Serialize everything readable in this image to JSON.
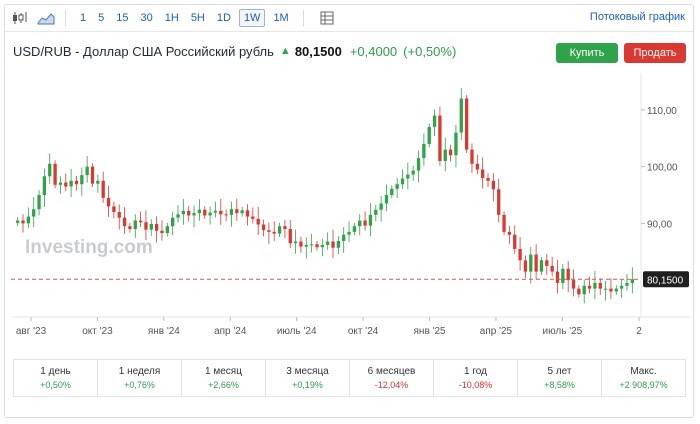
{
  "toolbar": {
    "ranges": [
      "1",
      "5",
      "15",
      "30",
      "1H",
      "5H",
      "1D",
      "1W",
      "1M"
    ],
    "active_range": "1W",
    "stream_link": "Потоковый график"
  },
  "header": {
    "title": "USD/RUB - Доллар США Российский рубль",
    "price": "80,1500",
    "change": "+0,4000",
    "change_pct": "(+0,50%)"
  },
  "buttons": {
    "buy": "Купить",
    "sell": "Продать"
  },
  "colors": {
    "up": "#2fa34a",
    "down": "#d83a32",
    "link": "#1b5fb8",
    "price_line": "#d9534f"
  },
  "chart_data": {
    "type": "candlestick",
    "watermark": "Investing.com",
    "y_axis": {
      "ticks": [
        "90,00",
        "100,00",
        "110,00"
      ],
      "tick_values": [
        90,
        100,
        110
      ],
      "range": [
        73.5,
        116.5
      ],
      "side": "right"
    },
    "x_axis": {
      "labels": [
        "авг '23",
        "окт '23",
        "янв '24",
        "апр '24",
        "июль '24",
        "окт '24",
        "янв '25",
        "апр '25",
        "июль '25",
        "2"
      ]
    },
    "current_price_label": "80,1500",
    "current_price": 80.15,
    "close_values": [
      90.5,
      90.0,
      91.2,
      92.5,
      95.0,
      98.3,
      100.5,
      96.8,
      97.2,
      96.5,
      97.5,
      96.9,
      98.5,
      100.0,
      97.0,
      97.5,
      94.5,
      93.0,
      92.0,
      91.0,
      89.5,
      89.0,
      90.5,
      90.2,
      88.9,
      89.9,
      88.7,
      88.3,
      89.5,
      91.0,
      91.6,
      92.2,
      91.4,
      91.8,
      92.4,
      91.4,
      91.9,
      92.2,
      91.6,
      91.5,
      92.5,
      91.8,
      92.3,
      91.2,
      90.8,
      89.8,
      88.8,
      88.5,
      88.2,
      89.5,
      89.0,
      86.5,
      86.8,
      85.9,
      86.2,
      86.3,
      85.8,
      86.2,
      86.8,
      85.7,
      86.9,
      88.0,
      88.5,
      89.5,
      90.5,
      89.6,
      91.5,
      92.4,
      93.5,
      95.0,
      96.1,
      96.9,
      97.9,
      98.6,
      99.3,
      101.5,
      104.0,
      107.0,
      109.0,
      101.0,
      103.0,
      102.0,
      106.0,
      112.0,
      103.0,
      100.5,
      99.5,
      98.0,
      97.5,
      96.0,
      91.5,
      88.5,
      88.0,
      85.5,
      83.5,
      81.5,
      84.5,
      81.5,
      83.5,
      82.5,
      81.5,
      79.5,
      82.0,
      80.0,
      78.5,
      77.5,
      79.0,
      78.5,
      79.5,
      78.5,
      78.5,
      78.0,
      78.5,
      79.0,
      79.5,
      80.15
    ]
  },
  "performance": [
    {
      "label": "1 день",
      "value": "+0,50%",
      "dir": "pos"
    },
    {
      "label": "1 неделя",
      "value": "+0,76%",
      "dir": "pos"
    },
    {
      "label": "1 месяц",
      "value": "+2,66%",
      "dir": "pos"
    },
    {
      "label": "3 месяца",
      "value": "+0,19%",
      "dir": "pos"
    },
    {
      "label": "6 месяцев",
      "value": "-12,04%",
      "dir": "neg"
    },
    {
      "label": "1 год",
      "value": "-10,08%",
      "dir": "neg"
    },
    {
      "label": "5 лет",
      "value": "+8,58%",
      "dir": "pos"
    },
    {
      "label": "Макс.",
      "value": "+2 908,97%",
      "dir": "pos"
    }
  ]
}
